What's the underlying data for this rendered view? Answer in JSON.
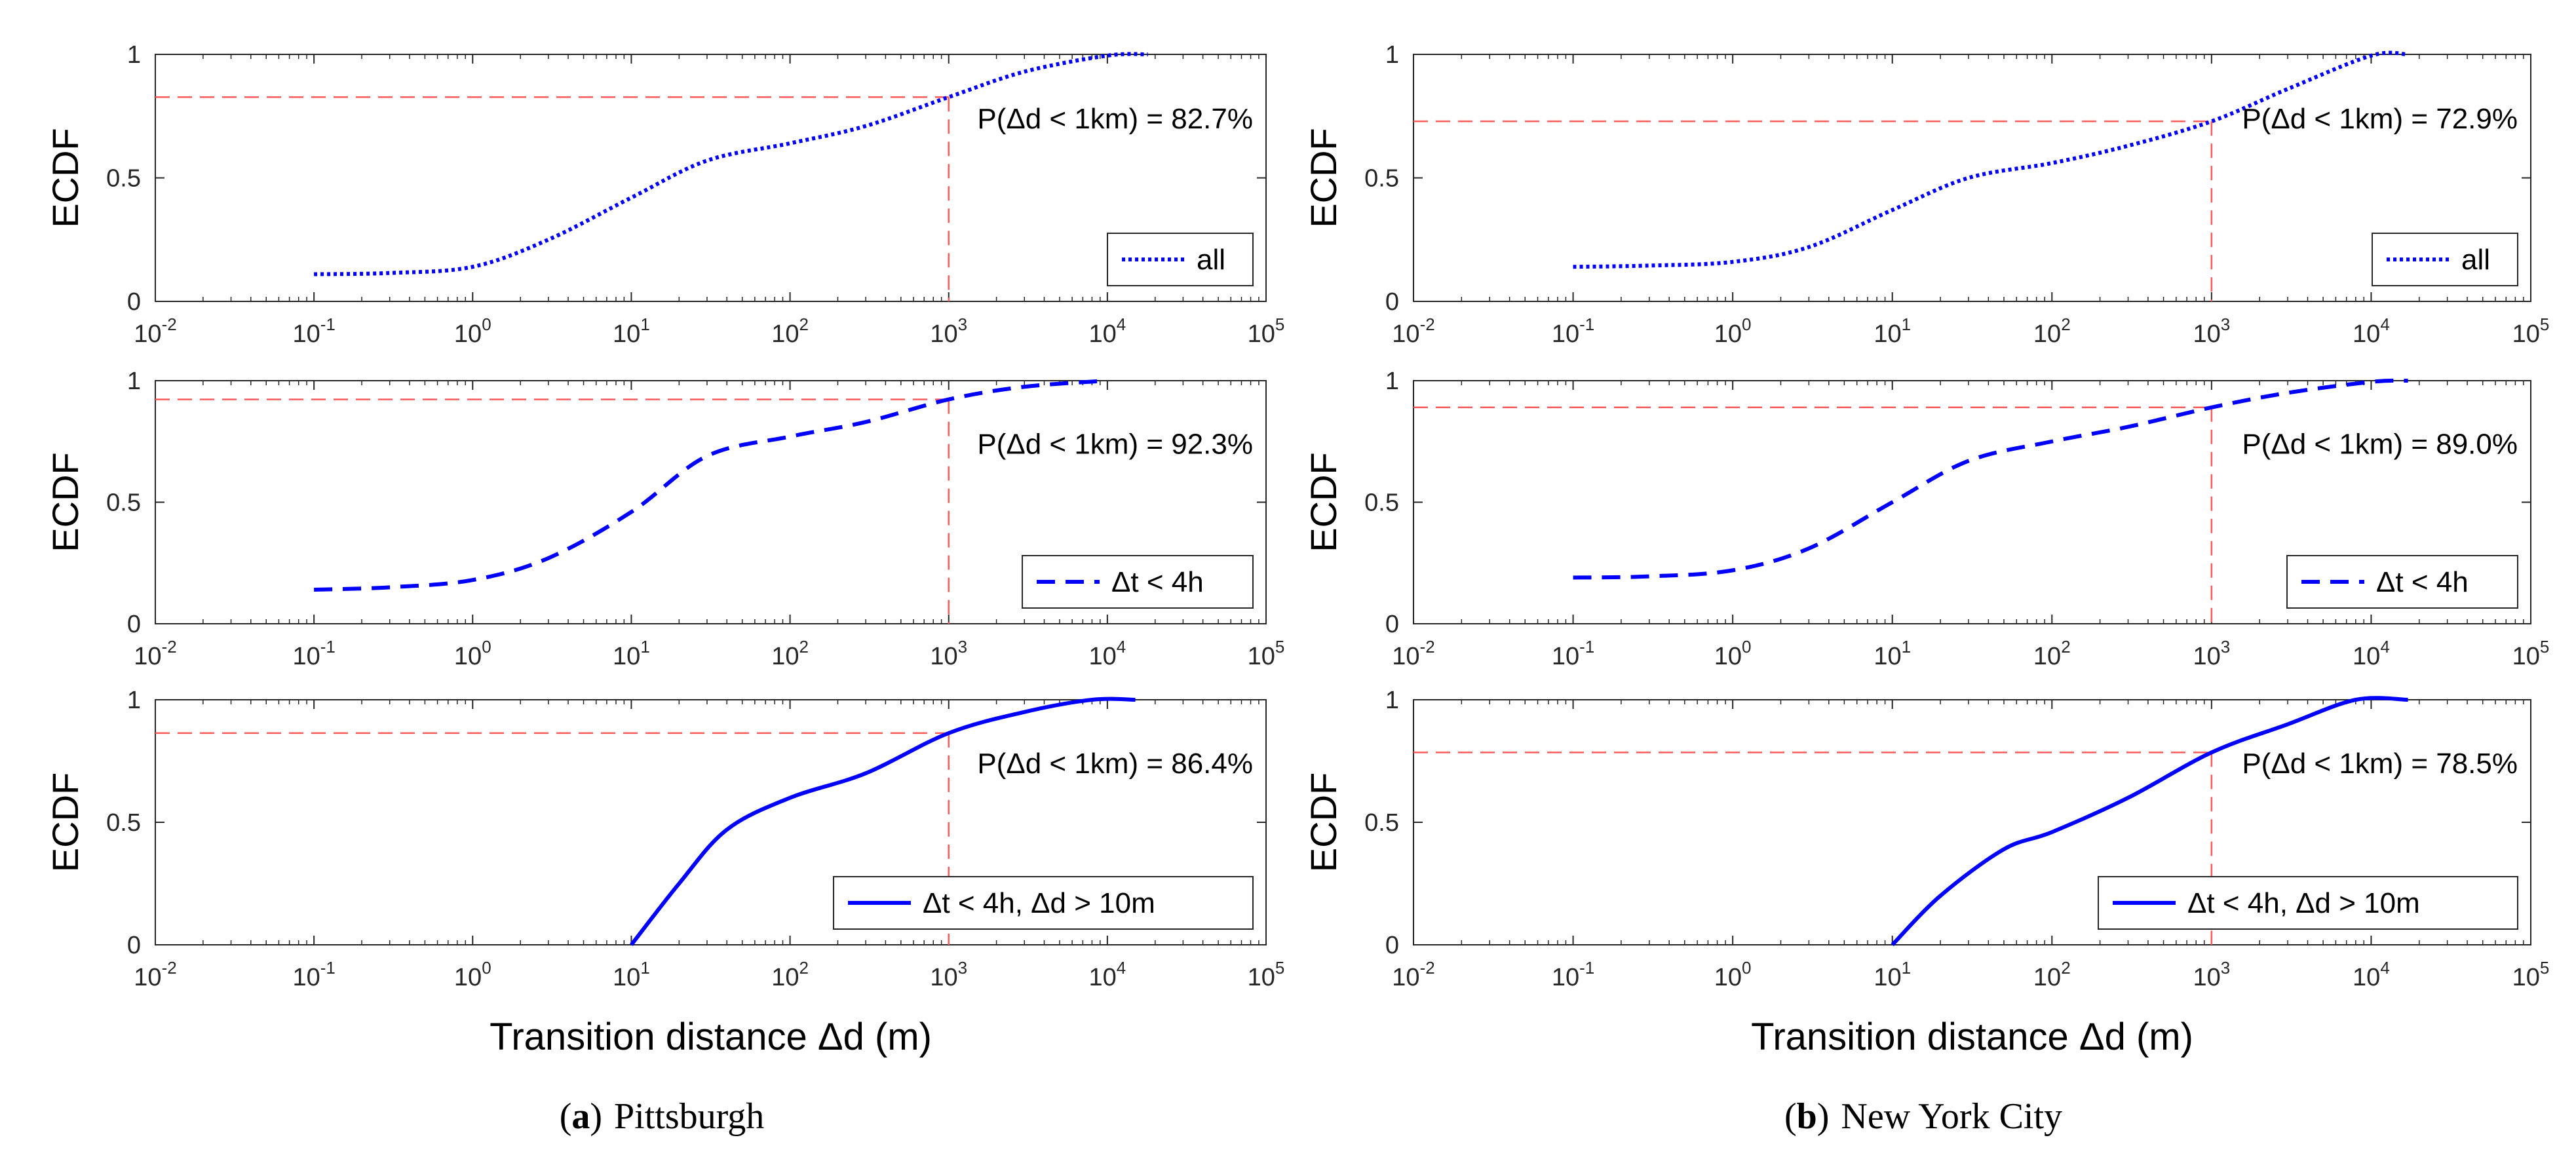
{
  "figure": {
    "captions": [
      {
        "prefix": "(",
        "letter": "a",
        "suffix": ")",
        "name": "Pittsburgh"
      },
      {
        "prefix": "(",
        "letter": "b",
        "suffix": ")",
        "name": "New York City"
      }
    ],
    "xlabel": "Transition distance  Δd (m)",
    "ylabel": "ECDF",
    "x_tick_base": "10",
    "x_tick_exponents": [
      "-2",
      "-1",
      "0",
      "1",
      "2",
      "3",
      "4",
      "5"
    ],
    "y_tick_labels": [
      "0",
      "0.5",
      "1"
    ]
  },
  "colors": {
    "curve": "#0000ff",
    "reference": "#ff5a5a",
    "axis": "#262626"
  },
  "chart_data": [
    {
      "type": "line",
      "panel": "a-1",
      "city": "Pittsburgh",
      "xscale": "log",
      "xlim": [
        0.01,
        100000
      ],
      "ylim": [
        0,
        1
      ],
      "legend": "all",
      "legend_position": "lower-right",
      "line_style": "dotted",
      "annotation": "P(Δd < 1km) = 82.7%",
      "reference": {
        "x": 1000,
        "y": 0.827
      },
      "series": [
        {
          "name": "all",
          "x": [
            0.1,
            0.3,
            1,
            3,
            10,
            30,
            100,
            300,
            1000,
            3000,
            10000,
            18000
          ],
          "y": [
            0.11,
            0.115,
            0.14,
            0.25,
            0.42,
            0.57,
            0.64,
            0.71,
            0.827,
            0.93,
            0.995,
            1.0
          ]
        }
      ]
    },
    {
      "type": "line",
      "panel": "a-2",
      "city": "Pittsburgh",
      "xscale": "log",
      "xlim": [
        0.01,
        100000
      ],
      "ylim": [
        0,
        1
      ],
      "legend": "Δt < 4h",
      "legend_position": "lower-right",
      "line_style": "dashed",
      "annotation": "P(Δd < 1km) = 92.3%",
      "reference": {
        "x": 1000,
        "y": 0.923
      },
      "series": [
        {
          "name": "Δt < 4h",
          "x": [
            0.1,
            0.3,
            1,
            3,
            10,
            30,
            100,
            300,
            1000,
            3000,
            10000
          ],
          "y": [
            0.14,
            0.15,
            0.18,
            0.27,
            0.46,
            0.69,
            0.77,
            0.83,
            0.923,
            0.975,
            1.0
          ]
        }
      ]
    },
    {
      "type": "line",
      "panel": "a-3",
      "city": "Pittsburgh",
      "xscale": "log",
      "xlim": [
        0.01,
        100000
      ],
      "ylim": [
        0,
        1
      ],
      "legend": "Δt < 4h, Δd > 10m",
      "legend_position": "lower-right",
      "line_style": "solid",
      "annotation": "P(Δd < 1km) = 86.4%",
      "reference": {
        "x": 1000,
        "y": 0.864
      },
      "series": [
        {
          "name": "Δt < 4h, Δd > 10m",
          "x": [
            10,
            20,
            40,
            100,
            300,
            1000,
            3000,
            8000,
            15000
          ],
          "y": [
            0.0,
            0.25,
            0.47,
            0.6,
            0.7,
            0.864,
            0.95,
            1.0,
            1.0
          ]
        }
      ]
    },
    {
      "type": "line",
      "panel": "b-1",
      "city": "New York City",
      "xscale": "log",
      "xlim": [
        0.01,
        100000
      ],
      "ylim": [
        0,
        1
      ],
      "legend": "all",
      "legend_position": "lower-right",
      "line_style": "dotted",
      "annotation": "P(Δd < 1km) = 72.9%",
      "reference": {
        "x": 1000,
        "y": 0.729
      },
      "series": [
        {
          "name": "all",
          "x": [
            0.1,
            0.3,
            1,
            3,
            10,
            30,
            100,
            300,
            1000,
            3000,
            10000,
            17000
          ],
          "y": [
            0.14,
            0.145,
            0.16,
            0.22,
            0.37,
            0.5,
            0.56,
            0.63,
            0.729,
            0.86,
            0.995,
            1.0
          ]
        }
      ]
    },
    {
      "type": "line",
      "panel": "b-2",
      "city": "New York City",
      "xscale": "log",
      "xlim": [
        0.01,
        100000
      ],
      "ylim": [
        0,
        1
      ],
      "legend": "Δt < 4h",
      "legend_position": "lower-right",
      "line_style": "dashed",
      "annotation": "P(Δd < 1km) = 89.0%",
      "reference": {
        "x": 1000,
        "y": 0.89
      },
      "series": [
        {
          "name": "Δt < 4h",
          "x": [
            0.1,
            0.3,
            1,
            3,
            10,
            30,
            100,
            300,
            1000,
            3000,
            10000,
            17000
          ],
          "y": [
            0.19,
            0.195,
            0.22,
            0.31,
            0.5,
            0.67,
            0.75,
            0.81,
            0.89,
            0.95,
            0.995,
            1.0
          ]
        }
      ]
    },
    {
      "type": "line",
      "panel": "b-3",
      "city": "New York City",
      "xscale": "log",
      "xlim": [
        0.01,
        100000
      ],
      "ylim": [
        0,
        1
      ],
      "legend": "Δt < 4h, Δd > 10m",
      "legend_position": "lower-right",
      "line_style": "solid",
      "annotation": "P(Δd < 1km) = 78.5%",
      "reference": {
        "x": 1000,
        "y": 0.785
      },
      "series": [
        {
          "name": "Δt < 4h, Δd > 10m",
          "x": [
            10,
            20,
            50,
            100,
            300,
            1000,
            3000,
            8000,
            17000
          ],
          "y": [
            0.0,
            0.2,
            0.39,
            0.46,
            0.6,
            0.785,
            0.9,
            1.0,
            1.0
          ]
        }
      ]
    }
  ]
}
